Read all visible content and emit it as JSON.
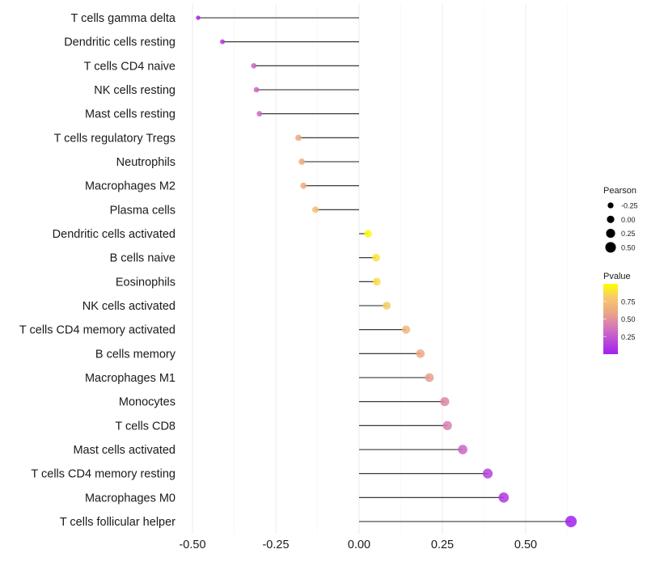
{
  "chart_data": {
    "type": "lollipop",
    "title": "",
    "xlabel": "",
    "ylabel": "",
    "xlim": [
      -0.52,
      0.66
    ],
    "xticks": [
      -0.5,
      -0.25,
      0.0,
      0.25,
      0.5
    ],
    "xtick_labels": [
      "-0.50",
      "-0.25",
      "0.00",
      "0.25",
      "0.50"
    ],
    "grid": true,
    "categories": [
      "T cells gamma delta",
      "Dendritic cells resting",
      "T cells CD4 naive",
      "NK cells resting",
      "Mast cells resting",
      "T cells regulatory  Tregs",
      "Neutrophils",
      "Macrophages M2",
      "Plasma cells",
      "Dendritic cells activated",
      "B cells naive",
      "Eosinophils",
      "NK cells activated",
      "T cells CD4 memory activated",
      "B cells memory",
      "Macrophages M1",
      "Monocytes",
      "T cells CD8",
      "Mast cells activated",
      "T cells CD4 memory resting",
      "Macrophages M0",
      "T cells follicular helper"
    ],
    "pearson": [
      -0.483,
      -0.41,
      -0.316,
      -0.308,
      -0.299,
      -0.182,
      -0.172,
      -0.167,
      -0.131,
      0.027,
      0.051,
      0.053,
      0.083,
      0.141,
      0.184,
      0.211,
      0.257,
      0.265,
      0.311,
      0.386,
      0.434,
      0.636
    ],
    "pvalue": [
      0.02,
      0.1,
      0.3,
      0.3,
      0.32,
      0.6,
      0.62,
      0.63,
      0.75,
      0.97,
      0.9,
      0.88,
      0.82,
      0.7,
      0.6,
      0.55,
      0.45,
      0.42,
      0.3,
      0.15,
      0.1,
      0.01
    ],
    "legend_size": {
      "title": "Pearson",
      "values": [
        -0.25,
        0.0,
        0.25,
        0.5
      ],
      "labels": [
        "-0.25",
        "0.00",
        "0.25",
        "0.50"
      ]
    },
    "legend_color": {
      "title": "Pvalue",
      "labels": [
        "0.75",
        "0.50",
        "0.25"
      ],
      "values": [
        0.75,
        0.5,
        0.25
      ],
      "low_color": "#a020f0",
      "high_color": "#ffff00"
    },
    "legend_placement": "right"
  }
}
